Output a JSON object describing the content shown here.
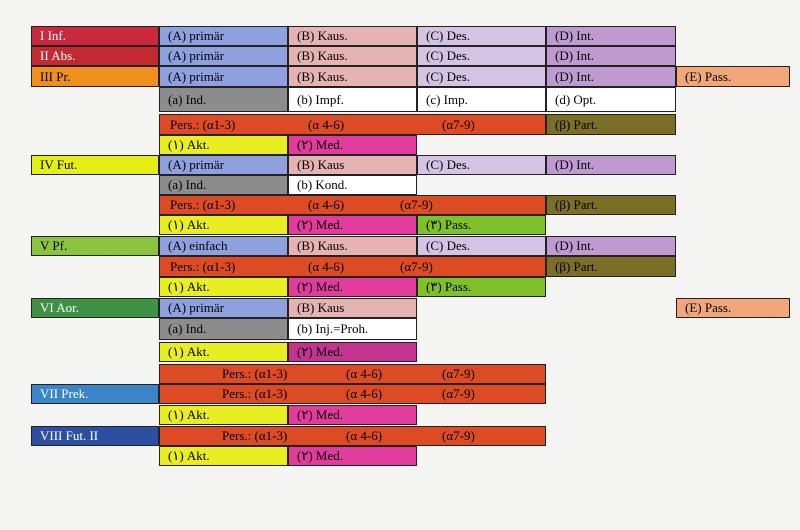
{
  "colors": {
    "inf": "#c9283d",
    "abs": "#c32a2f",
    "pr": "#ef8f1c",
    "fut": "#e6ef14",
    "pf": "#8cc33e",
    "aor": "#3f9244",
    "prek": "#3a84c7",
    "fut2": "#2c4fa2",
    "a_blue": "#8fa0de",
    "b_pink": "#e5b3b2",
    "c_lav": "#d4c3e3",
    "d_purple": "#be9ad0",
    "e_orange": "#f2a77a",
    "gray": "#8c8c8c",
    "white": "#ffffff",
    "pers_red": "#dc4b24",
    "olive": "#7b6e26",
    "yellow": "#e8ee1f",
    "magenta": "#e13b9c",
    "magenta_dark": "#c2348f",
    "green": "#7fc12b"
  },
  "row1": {
    "tense": "I  Inf.",
    "a": "(A) primär",
    "b": "(B) Kaus.",
    "c": "(C) Des.",
    "d": "(D) Int."
  },
  "row2": {
    "tense": "II  Abs.",
    "a": "(A) primär",
    "b": "(B) Kaus.",
    "c": "(C) Des.",
    "d": "(D) Int."
  },
  "row3": {
    "tense": "III  Pr.",
    "a": "(A) primär",
    "b": "(B) Kaus.",
    "c": "(C) Des.",
    "d": "(D) Int.",
    "e": "(E) Pass."
  },
  "row4": {
    "a": "(a) Ind.",
    "b": "(b) Impf.",
    "c": "(c) Imp.",
    "d": "(d) Opt."
  },
  "row5": {
    "p1": "Pers.: (α1-3)",
    "p2": "(α 4-6)",
    "p3": "(α7-9)",
    "part": "(β) Part."
  },
  "row6": {
    "akt": "(١) Akt.",
    "med": "(٢) Med."
  },
  "row7": {
    "tense": "IV  Fut.",
    "a": "(A) primär",
    "b": "(B) Kaus",
    "c": "(C) Des.",
    "d": "(D) Int."
  },
  "row8": {
    "a": "(a) Ind.",
    "b": "(b) Kond."
  },
  "row9": {
    "p1": "Pers.: (α1-3)",
    "p2": "(α 4-6)",
    "p3": "(α7-9)",
    "part": "(β) Part."
  },
  "row10": {
    "akt": "(١) Akt.",
    "med": "(٢) Med.",
    "pass": "(٣) Pass."
  },
  "row11": {
    "tense": "V  Pf.",
    "a": "(A) einfach",
    "b": "(B) Kaus.",
    "c": "(C) Des.",
    "d": "(D) Int."
  },
  "row12": {
    "p1": "Pers.: (α1-3)",
    "p2": "(α 4-6)",
    "p3": "(α7-9)",
    "part": "(β) Part."
  },
  "row13": {
    "akt": "(١) Akt.",
    "med": "(٢) Med.",
    "pass": "(٣) Pass."
  },
  "row14": {
    "tense": "VI  Aor.",
    "a": "(A) primär",
    "b": "(B) Kaus",
    "e": "(E) Pass."
  },
  "row15": {
    "a": "(a) Ind.",
    "b": "(b) Inj.=Proh."
  },
  "row16": {
    "akt": "(١) Akt.",
    "med": "(٢) Med."
  },
  "row17": {
    "p1": "Pers.: (α1-3)",
    "p2": "(α 4-6)",
    "p3": "(α7-9)"
  },
  "row18": {
    "tense": "VII  Prek.",
    "p1": "Pers.: (α1-3)",
    "p2": "(α 4-6)",
    "p3": "(α7-9)"
  },
  "row19": {
    "akt": "(١) Akt.",
    "med": "(٢) Med."
  },
  "row20": {
    "tense": "VIII  Fut. II",
    "p1": "Pers.: (α1-3)",
    "p2": "(α 4-6)",
    "p3": "(α7-9)"
  },
  "row21": {
    "akt": "(١) Akt.",
    "med": "(٢) Med."
  }
}
